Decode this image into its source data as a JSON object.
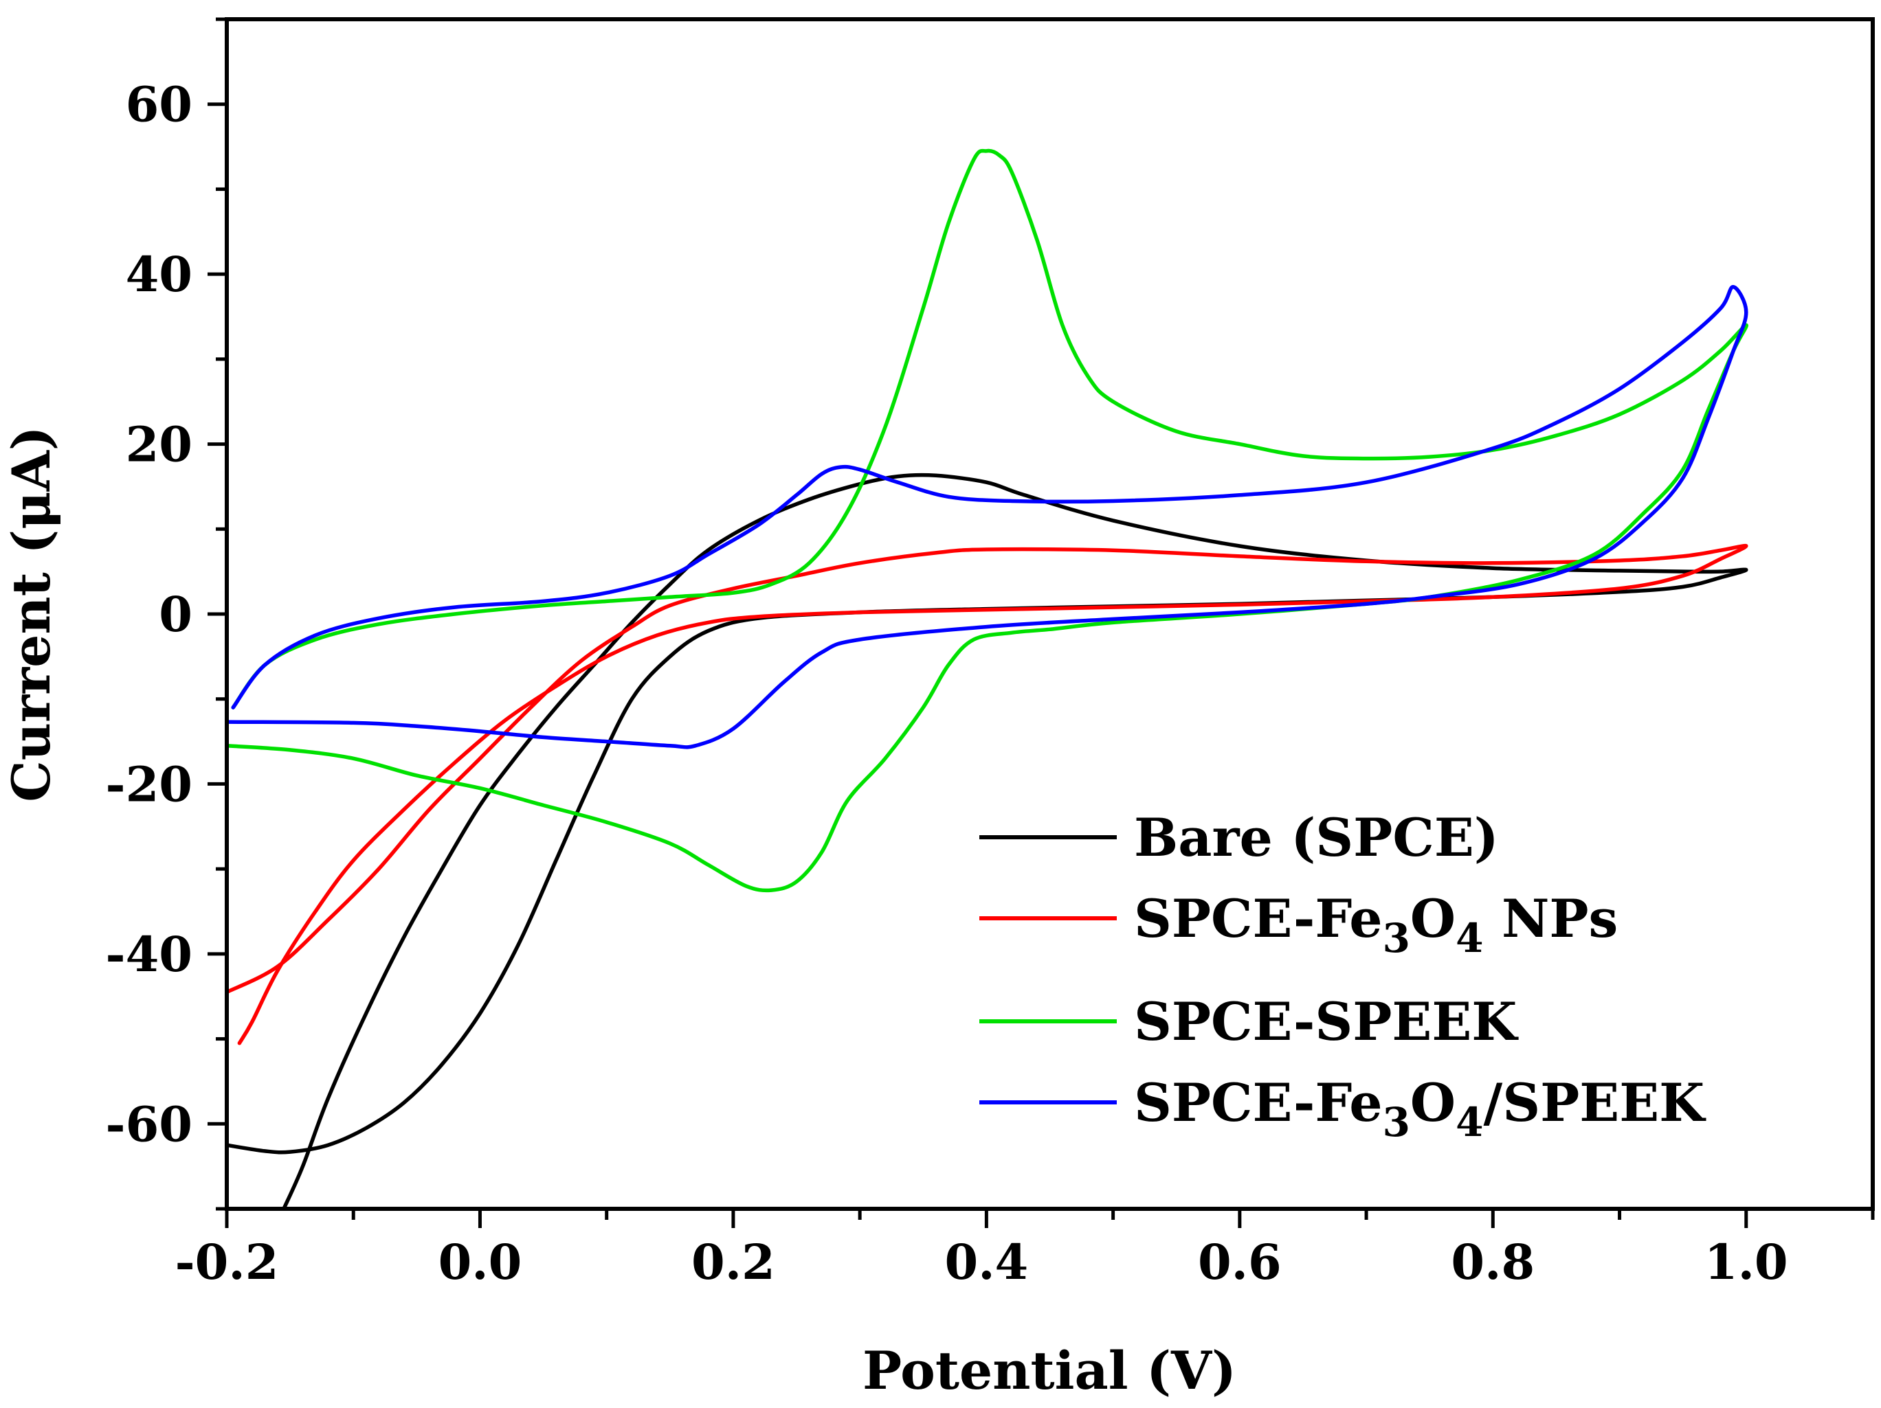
{
  "chart_data": {
    "type": "line",
    "title": "",
    "xlabel": "Potential (V)",
    "ylabel": "Current (μA)",
    "xlim": [
      -0.2,
      1.1
    ],
    "ylim": [
      -70,
      70
    ],
    "x_ticks": [
      -0.2,
      0.0,
      0.2,
      0.4,
      0.6,
      0.8,
      1.0
    ],
    "x_tick_labels": [
      "-0.2",
      "0.0",
      "0.2",
      "0.4",
      "0.6",
      "0.8",
      "1.0"
    ],
    "y_ticks": [
      -60,
      -40,
      -20,
      0,
      20,
      40,
      60
    ],
    "y_tick_labels": [
      "-60",
      "-40",
      "-20",
      "0",
      "20",
      "40",
      "60"
    ],
    "grid": false,
    "legend_position": "bottom-right",
    "series": [
      {
        "name": "Bare (SPCE)",
        "legend_parts": [
          {
            "t": "Bare (SPCE)"
          }
        ],
        "color": "#000000",
        "points": [
          [
            -0.2,
            -62.5
          ],
          [
            -0.17,
            -63.2
          ],
          [
            -0.15,
            -63.3
          ],
          [
            -0.12,
            -62.5
          ],
          [
            -0.09,
            -60.5
          ],
          [
            -0.06,
            -57.5
          ],
          [
            -0.03,
            -53
          ],
          [
            0.0,
            -47
          ],
          [
            0.03,
            -39
          ],
          [
            0.06,
            -29
          ],
          [
            0.09,
            -19
          ],
          [
            0.12,
            -10
          ],
          [
            0.15,
            -5
          ],
          [
            0.18,
            -2
          ],
          [
            0.22,
            -0.5
          ],
          [
            0.3,
            0.2
          ],
          [
            0.4,
            0.6
          ],
          [
            0.5,
            0.9
          ],
          [
            0.6,
            1.2
          ],
          [
            0.7,
            1.6
          ],
          [
            0.8,
            2
          ],
          [
            0.9,
            2.6
          ],
          [
            0.95,
            3.2
          ],
          [
            0.98,
            4.3
          ],
          [
            1.0,
            5.2
          ],
          [
            0.98,
            5.0
          ],
          [
            0.95,
            5.0
          ],
          [
            0.9,
            5.1
          ],
          [
            0.8,
            5.4
          ],
          [
            0.7,
            6.3
          ],
          [
            0.6,
            8
          ],
          [
            0.5,
            11
          ],
          [
            0.43,
            14
          ],
          [
            0.4,
            15.5
          ],
          [
            0.36,
            16.3
          ],
          [
            0.33,
            16.2
          ],
          [
            0.3,
            15.3
          ],
          [
            0.26,
            13.5
          ],
          [
            0.22,
            11
          ],
          [
            0.18,
            7.5
          ],
          [
            0.15,
            3.5
          ],
          [
            0.12,
            -1
          ],
          [
            0.09,
            -6
          ],
          [
            0.06,
            -11
          ],
          [
            0.03,
            -16.5
          ],
          [
            0.0,
            -22.5
          ],
          [
            -0.03,
            -30
          ],
          [
            -0.06,
            -38
          ],
          [
            -0.09,
            -47
          ],
          [
            -0.12,
            -57
          ],
          [
            -0.14,
            -65
          ],
          [
            -0.155,
            -70
          ]
        ]
      },
      {
        "name": "SPCE-Fe3O4 NPs",
        "legend_parts": [
          {
            "t": "SPCE-Fe"
          },
          {
            "t": "3",
            "sub": true
          },
          {
            "t": "O"
          },
          {
            "t": "4",
            "sub": true
          },
          {
            "t": " NPs"
          }
        ],
        "color": "#ff0000",
        "points": [
          [
            -0.19,
            -50.5
          ],
          [
            -0.18,
            -48
          ],
          [
            -0.16,
            -42
          ],
          [
            -0.13,
            -35
          ],
          [
            -0.1,
            -29
          ],
          [
            -0.06,
            -23
          ],
          [
            -0.02,
            -17.5
          ],
          [
            0.02,
            -12.5
          ],
          [
            0.06,
            -8.5
          ],
          [
            0.1,
            -5
          ],
          [
            0.14,
            -2.5
          ],
          [
            0.18,
            -1
          ],
          [
            0.22,
            -0.3
          ],
          [
            0.3,
            0.2
          ],
          [
            0.4,
            0.5
          ],
          [
            0.5,
            0.8
          ],
          [
            0.6,
            1.1
          ],
          [
            0.7,
            1.5
          ],
          [
            0.8,
            2
          ],
          [
            0.9,
            3
          ],
          [
            0.95,
            4.5
          ],
          [
            0.98,
            6.5
          ],
          [
            1.0,
            8
          ],
          [
            0.98,
            7.5
          ],
          [
            0.95,
            6.8
          ],
          [
            0.9,
            6.3
          ],
          [
            0.8,
            6
          ],
          [
            0.7,
            6.2
          ],
          [
            0.6,
            6.8
          ],
          [
            0.5,
            7.5
          ],
          [
            0.4,
            7.6
          ],
          [
            0.36,
            7.2
          ],
          [
            0.3,
            6
          ],
          [
            0.25,
            4.5
          ],
          [
            0.2,
            3
          ],
          [
            0.15,
            1
          ],
          [
            0.12,
            -1.5
          ],
          [
            0.08,
            -5.5
          ],
          [
            0.04,
            -11
          ],
          [
            0.0,
            -17
          ],
          [
            -0.04,
            -23
          ],
          [
            -0.08,
            -30
          ],
          [
            -0.12,
            -36
          ],
          [
            -0.16,
            -41.5
          ],
          [
            -0.2,
            -44.5
          ]
        ]
      },
      {
        "name": "SPCE-SPEEK",
        "legend_parts": [
          {
            "t": "SPCE-SPEEK"
          }
        ],
        "color": "#00e000",
        "points": [
          [
            -0.195,
            -11
          ],
          [
            -0.17,
            -6
          ],
          [
            -0.13,
            -3
          ],
          [
            -0.08,
            -1.2
          ],
          [
            -0.02,
            0
          ],
          [
            0.05,
            1
          ],
          [
            0.1,
            1.5
          ],
          [
            0.15,
            2
          ],
          [
            0.2,
            2.5
          ],
          [
            0.23,
            3.5
          ],
          [
            0.26,
            6
          ],
          [
            0.29,
            12
          ],
          [
            0.32,
            22
          ],
          [
            0.35,
            36
          ],
          [
            0.37,
            46
          ],
          [
            0.39,
            53.5
          ],
          [
            0.4,
            54.5
          ],
          [
            0.41,
            54
          ],
          [
            0.42,
            52
          ],
          [
            0.44,
            44
          ],
          [
            0.46,
            34
          ],
          [
            0.48,
            28
          ],
          [
            0.5,
            25
          ],
          [
            0.55,
            21.5
          ],
          [
            0.6,
            20
          ],
          [
            0.65,
            18.6
          ],
          [
            0.7,
            18.3
          ],
          [
            0.75,
            18.5
          ],
          [
            0.8,
            19.3
          ],
          [
            0.85,
            21
          ],
          [
            0.9,
            23.5
          ],
          [
            0.95,
            27.5
          ],
          [
            0.98,
            31
          ],
          [
            1.0,
            34
          ],
          [
            0.99,
            31
          ],
          [
            0.97,
            24
          ],
          [
            0.95,
            17
          ],
          [
            0.92,
            12
          ],
          [
            0.88,
            7
          ],
          [
            0.82,
            4
          ],
          [
            0.75,
            2
          ],
          [
            0.7,
            1.2
          ],
          [
            0.6,
            0
          ],
          [
            0.5,
            -1
          ],
          [
            0.45,
            -1.8
          ],
          [
            0.42,
            -2.2
          ],
          [
            0.39,
            -3
          ],
          [
            0.37,
            -6
          ],
          [
            0.35,
            -11
          ],
          [
            0.32,
            -17
          ],
          [
            0.29,
            -22
          ],
          [
            0.27,
            -28
          ],
          [
            0.25,
            -31.5
          ],
          [
            0.23,
            -32.5
          ],
          [
            0.21,
            -32
          ],
          [
            0.18,
            -29.5
          ],
          [
            0.15,
            -27
          ],
          [
            0.1,
            -24.5
          ],
          [
            0.05,
            -22.5
          ],
          [
            0.0,
            -20.5
          ],
          [
            -0.05,
            -19
          ],
          [
            -0.1,
            -17
          ],
          [
            -0.15,
            -16
          ],
          [
            -0.2,
            -15.5
          ]
        ]
      },
      {
        "name": "SPCE-Fe3O4/SPEEK",
        "legend_parts": [
          {
            "t": "SPCE-Fe"
          },
          {
            "t": "3",
            "sub": true
          },
          {
            "t": "O"
          },
          {
            "t": "4",
            "sub": true
          },
          {
            "t": "/SPEEK"
          }
        ],
        "color": "#0000ff",
        "points": [
          [
            -0.195,
            -11
          ],
          [
            -0.17,
            -6
          ],
          [
            -0.13,
            -2.5
          ],
          [
            -0.08,
            -0.5
          ],
          [
            -0.02,
            0.8
          ],
          [
            0.05,
            1.5
          ],
          [
            0.1,
            2.5
          ],
          [
            0.15,
            4.5
          ],
          [
            0.18,
            7
          ],
          [
            0.22,
            10.5
          ],
          [
            0.25,
            14
          ],
          [
            0.27,
            16.5
          ],
          [
            0.285,
            17.3
          ],
          [
            0.3,
            17
          ],
          [
            0.33,
            15.5
          ],
          [
            0.37,
            13.8
          ],
          [
            0.42,
            13.3
          ],
          [
            0.5,
            13.3
          ],
          [
            0.6,
            14
          ],
          [
            0.7,
            15.5
          ],
          [
            0.8,
            19.5
          ],
          [
            0.85,
            22.5
          ],
          [
            0.9,
            26.5
          ],
          [
            0.95,
            32
          ],
          [
            0.98,
            36
          ],
          [
            0.99,
            38.5
          ],
          [
            1.0,
            35.5
          ],
          [
            0.99,
            31
          ],
          [
            0.97,
            23
          ],
          [
            0.95,
            16
          ],
          [
            0.92,
            11
          ],
          [
            0.88,
            6.5
          ],
          [
            0.82,
            3.5
          ],
          [
            0.75,
            2
          ],
          [
            0.7,
            1.2
          ],
          [
            0.6,
            0.2
          ],
          [
            0.5,
            -0.6
          ],
          [
            0.4,
            -1.5
          ],
          [
            0.3,
            -3
          ],
          [
            0.27,
            -4.5
          ],
          [
            0.24,
            -8
          ],
          [
            0.2,
            -13.5
          ],
          [
            0.17,
            -15.5
          ],
          [
            0.15,
            -15.5
          ],
          [
            0.1,
            -15
          ],
          [
            0.05,
            -14.5
          ],
          [
            0.0,
            -13.8
          ],
          [
            -0.05,
            -13.2
          ],
          [
            -0.1,
            -12.8
          ],
          [
            -0.2,
            -12.7
          ]
        ]
      }
    ]
  }
}
